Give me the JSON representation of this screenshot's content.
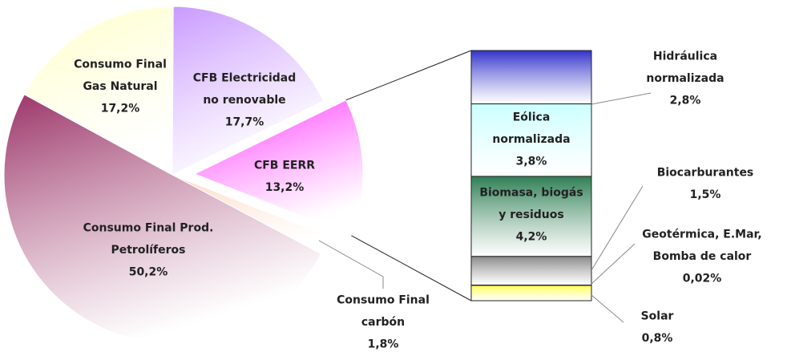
{
  "chart_data": {
    "type": "pie-of-bar",
    "pie": {
      "labels": [
        "CFB EERR",
        "Consumo Final\ncarbón",
        "Consumo Final  Prod.\nPetrolíferos",
        "Consumo Final\nGas Natural",
        "CFB Electricidad\nno renovable"
      ],
      "values": [
        13.2,
        1.8,
        50.2,
        17.2,
        17.7
      ],
      "value_labels": [
        "13,2%",
        "1,8%",
        "50,2%",
        "17,2%",
        "17,7%"
      ],
      "colors": [
        "#ff33ff",
        "#ffd9c4",
        "#9b3468",
        "#ffffc8",
        "#c999ff"
      ]
    },
    "bar": {
      "labels": [
        "Hidráulica\nnormalizada",
        "Eólica\nnormalizada",
        "Biomasa, biogás\ny residuos",
        "Biocarburantes",
        "Geotérmica, E.Mar,\nBomba de calor",
        "Solar"
      ],
      "values": [
        2.8,
        3.8,
        4.2,
        1.5,
        0.02,
        0.8
      ],
      "value_labels": [
        "2,8%",
        "3,8%",
        "4,2%",
        "1,5%",
        "0,02%",
        "0,8%"
      ],
      "colors": [
        "#3333cc",
        "#ccffff",
        "#2f7f55",
        "#888888",
        "#cccccc",
        "#ffff55"
      ]
    }
  }
}
